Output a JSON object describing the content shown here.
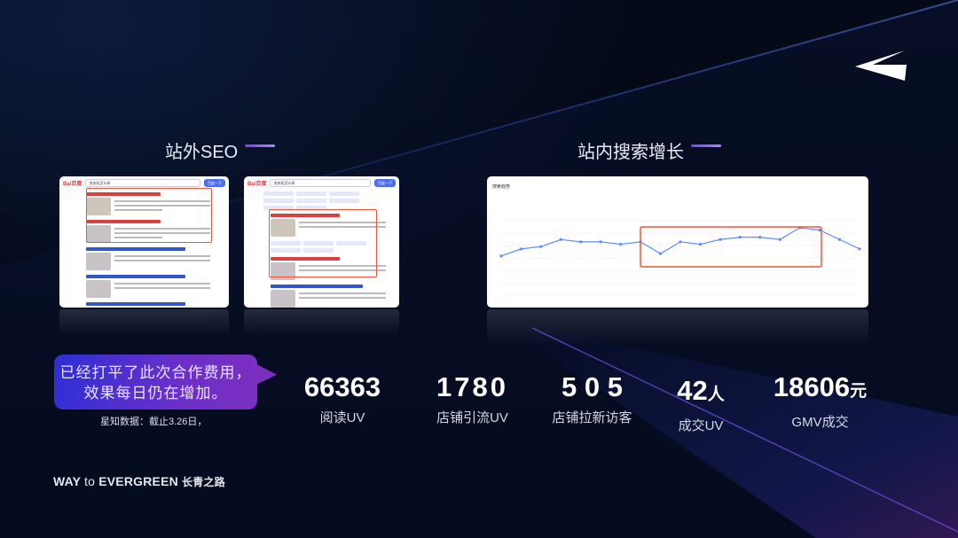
{
  "sections": {
    "offsite_title": "站外SEO",
    "onsite_title": "站内搜索增长"
  },
  "baidu_screens": [
    {
      "logo": "Bai百度",
      "query": "洗衣机怎么样",
      "search_button": "百度一下"
    },
    {
      "logo": "Bai百度",
      "query": "洗衣机怎么样",
      "search_button": "百度一下"
    }
  ],
  "search_trend_card": {
    "title": "搜索趋势",
    "points": [
      17,
      20,
      21,
      24,
      23,
      23,
      22,
      23,
      18,
      23,
      22,
      24,
      25,
      25,
      24,
      29,
      28,
      24,
      20
    ],
    "line_color": "#5b8cff",
    "highlight_color": "#f0553c"
  },
  "callout": {
    "text": "已经打平了此次合作费用，效果每日仍在增加。",
    "note": "星知数据：截止3.26日，"
  },
  "stats": [
    {
      "value": "66363",
      "unit": "",
      "label": "阅读UV"
    },
    {
      "value": "1780",
      "unit": "",
      "label": "店铺引流UV"
    },
    {
      "value": "5 0 5",
      "unit": "",
      "label": "店铺拉新访客"
    },
    {
      "value": "42",
      "unit": "人",
      "label": "成交UV"
    },
    {
      "value": "18606",
      "unit": "元",
      "label": "GMV成交"
    }
  ],
  "footer": {
    "way": "WAY",
    "to": "to",
    "evergreen": "EVERGREEN",
    "cn": "长青之路"
  },
  "icons": {
    "logo": "paper-plane-arrow-logo"
  }
}
